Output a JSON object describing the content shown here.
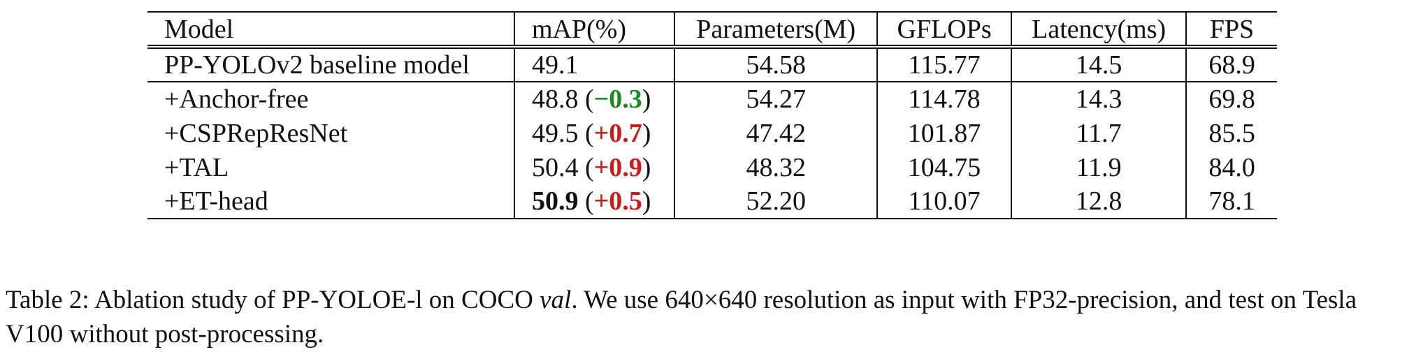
{
  "table": {
    "headers": [
      "Model",
      "mAP(%)",
      "Parameters(M)",
      "GFLOPs",
      "Latency(ms)",
      "FPS"
    ],
    "baseline": {
      "model": "PP-YOLOv2 baseline model",
      "map": "49.1",
      "params": "54.58",
      "gflops": "115.77",
      "latency": "14.5",
      "fps": "68.9"
    },
    "rows": [
      {
        "model": "+Anchor-free",
        "map": "48.8",
        "delta_open": "(",
        "delta_sign": "−",
        "delta": "0.3",
        "delta_close": ")",
        "params": "54.27",
        "gflops": "114.78",
        "latency": "14.3",
        "fps": "69.8",
        "delta_color": "#1e8a22"
      },
      {
        "model": "+CSPRepResNet",
        "map": "49.5",
        "delta_open": "(",
        "delta_sign": "+",
        "delta": "0.7",
        "delta_close": ")",
        "params": "47.42",
        "gflops": "101.87",
        "latency": "11.7",
        "fps": "85.5",
        "delta_color": "#cc1a1a"
      },
      {
        "model": "+TAL",
        "map": "50.4",
        "delta_open": "(",
        "delta_sign": "+",
        "delta": "0.9",
        "delta_close": ")",
        "params": "48.32",
        "gflops": "104.75",
        "latency": "11.9",
        "fps": "84.0",
        "delta_color": "#cc1a1a"
      },
      {
        "model": "+ET-head",
        "map": "50.9",
        "delta_open": "(",
        "delta_sign": "+",
        "delta": "0.5",
        "delta_close": ")",
        "params": "52.20",
        "gflops": "110.07",
        "latency": "12.8",
        "fps": "78.1",
        "delta_color": "#cc1a1a"
      }
    ]
  },
  "caption": {
    "label": "Table 2:",
    "text_before": " Ablation study of PP-YOLOE-l on COCO ",
    "italic": "val",
    "text_after": ". We use 640×640 resolution as input with FP32-precision, and test on Tesla V100 without post-processing."
  }
}
